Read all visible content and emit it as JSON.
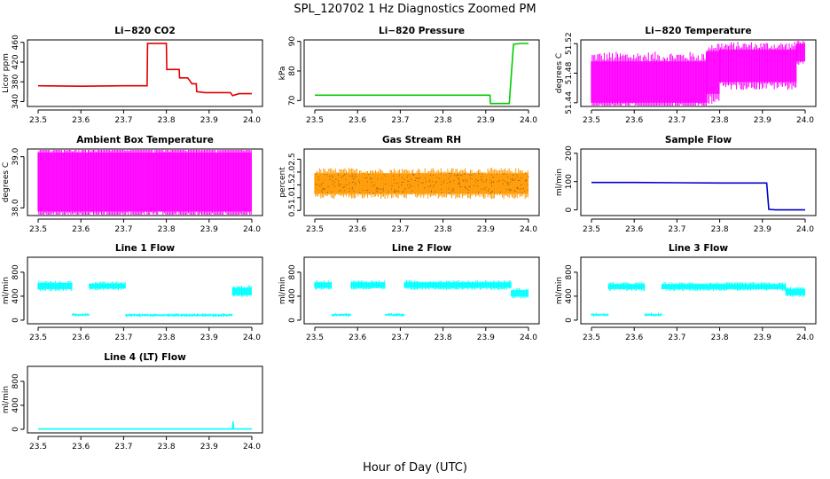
{
  "figure": {
    "title": "SPL_120702  1 Hz Diagnostics Zoomed PM",
    "xlabel": "Hour of Day (UTC)"
  },
  "chart_data": [
    {
      "type": "line",
      "title": "Li−820 CO2",
      "ylabel": "Licor ppm",
      "xlim": [
        23.5,
        24.0
      ],
      "ylim": [
        330,
        465
      ],
      "xticks": [
        "23.5",
        "23.6",
        "23.7",
        "23.8",
        "23.9",
        "24.0"
      ],
      "yticks": [
        "340",
        "380",
        "420",
        "460"
      ],
      "ytick_values": [
        340,
        380,
        420,
        460
      ],
      "color": "#e00000",
      "series": [
        {
          "x": [
            23.5,
            23.6,
            23.7,
            23.755,
            23.756,
            23.78,
            23.8,
            23.801,
            23.83,
            23.831,
            23.85,
            23.86,
            23.87,
            23.871,
            23.89,
            23.9,
            23.93,
            23.95,
            23.955,
            23.97,
            24.0
          ],
          "y": [
            372,
            371,
            372,
            372,
            458,
            458,
            458,
            405,
            405,
            388,
            388,
            376,
            376,
            360,
            358,
            358,
            358,
            358,
            352,
            356,
            356
          ]
        }
      ]
    },
    {
      "type": "line",
      "title": "Li−820 Pressure",
      "ylabel": "kPa",
      "xlim": [
        23.5,
        24.0
      ],
      "ylim": [
        68,
        90.5
      ],
      "xticks": [
        "23.5",
        "23.6",
        "23.7",
        "23.8",
        "23.9",
        "24.0"
      ],
      "yticks": [
        "70",
        "80",
        "90"
      ],
      "ytick_values": [
        70,
        80,
        90
      ],
      "color": "#00cc00",
      "series": [
        {
          "x": [
            23.5,
            23.6,
            23.7,
            23.8,
            23.91,
            23.911,
            23.955,
            23.965,
            23.98,
            24.0
          ],
          "y": [
            71.8,
            71.8,
            71.8,
            71.8,
            71.8,
            69,
            69,
            89,
            89.3,
            89.3
          ]
        }
      ]
    },
    {
      "type": "line",
      "title": "Li−820 Temperature",
      "ylabel": "degrees C",
      "xlim": [
        23.5,
        24.0
      ],
      "ylim": [
        51.435,
        51.525
      ],
      "xticks": [
        "23.5",
        "23.6",
        "23.7",
        "23.8",
        "23.9",
        "24.0"
      ],
      "yticks": [
        "51.44",
        "51.48",
        "51.52"
      ],
      "ytick_values": [
        51.44,
        51.48,
        51.52
      ],
      "color": "#ff00ff",
      "band_series": [
        {
          "x_start": 23.5,
          "x_end": 23.77,
          "y_low": 51.44,
          "y_high": 51.496
        },
        {
          "x_start": 23.77,
          "x_end": 23.8,
          "y_low": 51.452,
          "y_high": 51.51
        },
        {
          "x_start": 23.8,
          "x_end": 23.98,
          "y_low": 51.468,
          "y_high": 51.512
        },
        {
          "x_start": 23.98,
          "x_end": 24.0,
          "y_low": 51.496,
          "y_high": 51.52
        }
      ]
    },
    {
      "type": "line",
      "title": "Ambient Box Temperature",
      "ylabel": "degrees C",
      "xlim": [
        23.5,
        24.0
      ],
      "ylim": [
        37.85,
        39.15
      ],
      "xticks": [
        "23.5",
        "23.6",
        "23.7",
        "23.8",
        "23.9",
        "24.0"
      ],
      "yticks": [
        "38.0",
        "39.0"
      ],
      "ytick_values": [
        38.0,
        39.0
      ],
      "color": "#ff00ff",
      "band_series": [
        {
          "x_start": 23.5,
          "x_end": 24.0,
          "y_low": 37.93,
          "y_high": 39.08
        }
      ]
    },
    {
      "type": "line",
      "title": "Gas Stream RH",
      "ylabel": "percent",
      "xlim": [
        23.5,
        24.0
      ],
      "ylim": [
        0.3,
        2.9
      ],
      "xticks": [
        "23.5",
        "23.6",
        "23.7",
        "23.8",
        "23.9",
        "24.0"
      ],
      "yticks": [
        "0.5",
        "1.0",
        "1.5",
        "2.0",
        "2.5"
      ],
      "ytick_values": [
        0.5,
        1.0,
        1.5,
        2.0,
        2.5
      ],
      "color": "#ff9900",
      "point_color": "#000000",
      "band_series": [
        {
          "x_start": 23.5,
          "x_end": 24.0,
          "y_low": 1.15,
          "y_high": 1.95
        }
      ]
    },
    {
      "type": "line",
      "title": "Sample Flow",
      "ylabel": "ml/min",
      "xlim": [
        23.5,
        24.0
      ],
      "ylim": [
        -20,
        215
      ],
      "xticks": [
        "23.5",
        "23.6",
        "23.7",
        "23.8",
        "23.9",
        "24.0"
      ],
      "yticks": [
        "0",
        "100",
        "200"
      ],
      "ytick_values": [
        0,
        100,
        200
      ],
      "color": "#0000cc",
      "series": [
        {
          "x": [
            23.5,
            23.6,
            23.7,
            23.8,
            23.91,
            23.915,
            23.93,
            24.0
          ],
          "y": [
            97,
            97,
            96,
            95,
            95,
            2,
            0,
            0
          ]
        }
      ]
    },
    {
      "type": "line",
      "title": "Line 1 Flow",
      "ylabel": "ml/min",
      "xlim": [
        23.5,
        24.0
      ],
      "ylim": [
        -60,
        1050
      ],
      "xticks": [
        "23.5",
        "23.6",
        "23.7",
        "23.8",
        "23.9",
        "24.0"
      ],
      "yticks": [
        "0",
        "400",
        "800"
      ],
      "ytick_values": [
        0,
        400,
        800
      ],
      "color": "#00ffff",
      "band_series": [
        {
          "x_start": 23.5,
          "x_end": 23.58,
          "y_low": 520,
          "y_high": 620
        },
        {
          "x_start": 23.58,
          "x_end": 23.62,
          "y_low": 80,
          "y_high": 100
        },
        {
          "x_start": 23.62,
          "x_end": 23.705,
          "y_low": 530,
          "y_high": 610
        },
        {
          "x_start": 23.705,
          "x_end": 23.955,
          "y_low": 75,
          "y_high": 95
        },
        {
          "x_start": 23.955,
          "x_end": 24.0,
          "y_low": 420,
          "y_high": 540
        }
      ]
    },
    {
      "type": "line",
      "title": "Line 2 Flow",
      "ylabel": "ml/min",
      "xlim": [
        23.5,
        24.0
      ],
      "ylim": [
        -60,
        1050
      ],
      "xticks": [
        "23.5",
        "23.6",
        "23.7",
        "23.8",
        "23.9",
        "24.0"
      ],
      "yticks": [
        "0",
        "400",
        "800"
      ],
      "ytick_values": [
        0,
        400,
        800
      ],
      "color": "#00ffff",
      "band_series": [
        {
          "x_start": 23.5,
          "x_end": 23.54,
          "y_low": 540,
          "y_high": 630
        },
        {
          "x_start": 23.54,
          "x_end": 23.585,
          "y_low": 80,
          "y_high": 100
        },
        {
          "x_start": 23.585,
          "x_end": 23.665,
          "y_low": 540,
          "y_high": 630
        },
        {
          "x_start": 23.665,
          "x_end": 23.71,
          "y_low": 80,
          "y_high": 100
        },
        {
          "x_start": 23.71,
          "x_end": 23.96,
          "y_low": 540,
          "y_high": 630
        },
        {
          "x_start": 23.96,
          "x_end": 24.0,
          "y_low": 400,
          "y_high": 500
        }
      ]
    },
    {
      "type": "line",
      "title": "Line 3 Flow",
      "ylabel": "ml/min",
      "xlim": [
        23.5,
        24.0
      ],
      "ylim": [
        -60,
        1050
      ],
      "xticks": [
        "23.5",
        "23.6",
        "23.7",
        "23.8",
        "23.9",
        "24.0"
      ],
      "yticks": [
        "0",
        "400",
        "800"
      ],
      "ytick_values": [
        0,
        400,
        800
      ],
      "color": "#00ffff",
      "band_series": [
        {
          "x_start": 23.5,
          "x_end": 23.54,
          "y_low": 80,
          "y_high": 100
        },
        {
          "x_start": 23.54,
          "x_end": 23.625,
          "y_low": 520,
          "y_high": 600
        },
        {
          "x_start": 23.625,
          "x_end": 23.665,
          "y_low": 80,
          "y_high": 100
        },
        {
          "x_start": 23.665,
          "x_end": 23.955,
          "y_low": 520,
          "y_high": 600
        },
        {
          "x_start": 23.955,
          "x_end": 24.0,
          "y_low": 420,
          "y_high": 520
        }
      ]
    },
    {
      "type": "line",
      "title": "Line 4 (LT) Flow",
      "ylabel": "ml/min",
      "xlim": [
        23.5,
        24.0
      ],
      "ylim": [
        -60,
        1050
      ],
      "xticks": [
        "23.5",
        "23.6",
        "23.7",
        "23.8",
        "23.9",
        "24.0"
      ],
      "yticks": [
        "0",
        "400",
        "800"
      ],
      "ytick_values": [
        0,
        400,
        800
      ],
      "color": "#00ffff",
      "series": [
        {
          "x": [
            23.5,
            23.7,
            23.955,
            23.956,
            23.957,
            23.958,
            24.0
          ],
          "y": [
            5,
            5,
            5,
            130,
            5,
            5,
            5
          ]
        }
      ]
    }
  ]
}
